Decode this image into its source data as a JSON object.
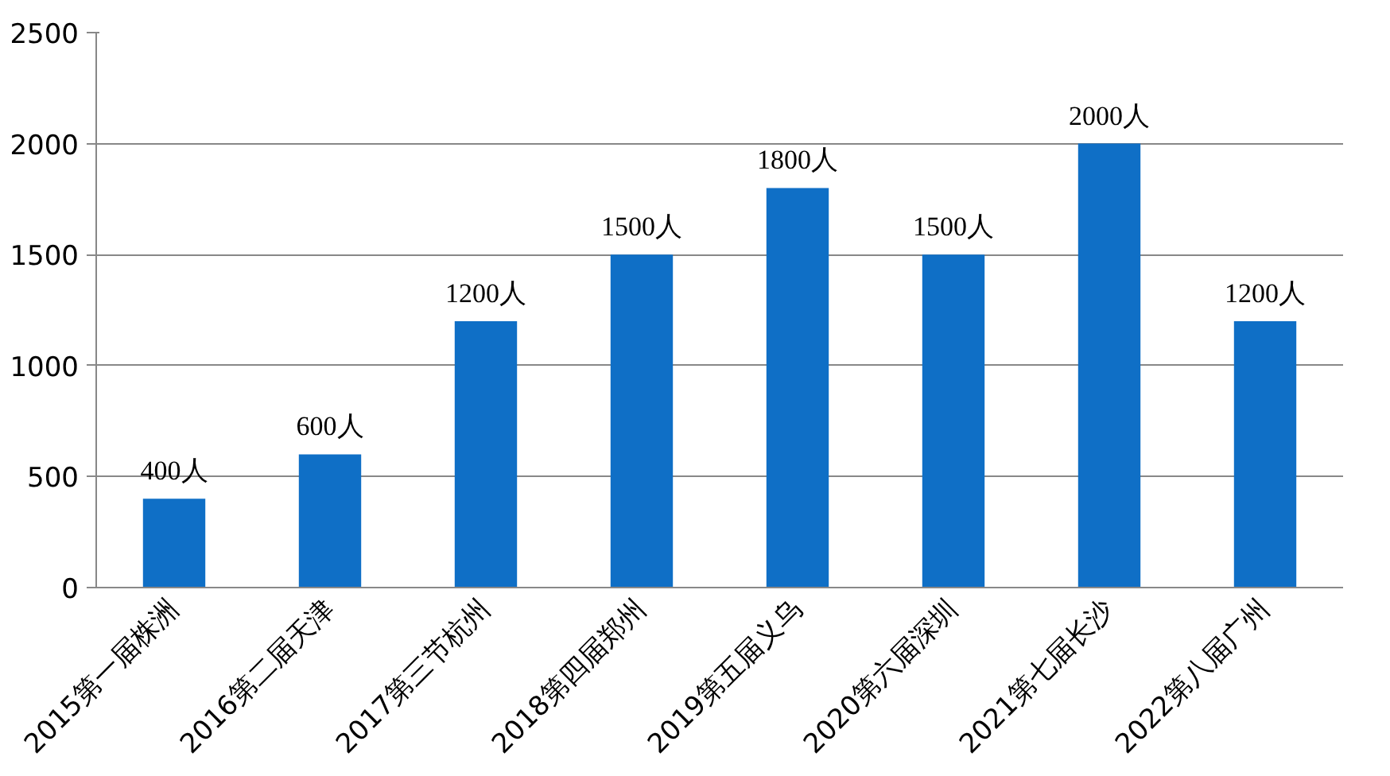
{
  "chart_data": {
    "type": "bar",
    "categories": [
      "2015第一届株洲",
      "2016第二届天津",
      "2017第三节杭州",
      "2018第四届郑州",
      "2019第五届义乌",
      "2020第六届深圳",
      "2021第七届长沙",
      "2022第八届广州"
    ],
    "values": [
      400,
      600,
      1200,
      1500,
      1800,
      1500,
      2000,
      1200
    ],
    "value_labels": [
      "400人",
      "600人",
      "1200人",
      "1500人",
      "1800人",
      "1500人",
      "2000人",
      "1200人"
    ],
    "color": "#0f6fc6",
    "ylim": [
      0,
      2500
    ],
    "yticks": [
      0,
      500,
      1000,
      1500,
      2000,
      2500
    ],
    "grid": "y"
  }
}
